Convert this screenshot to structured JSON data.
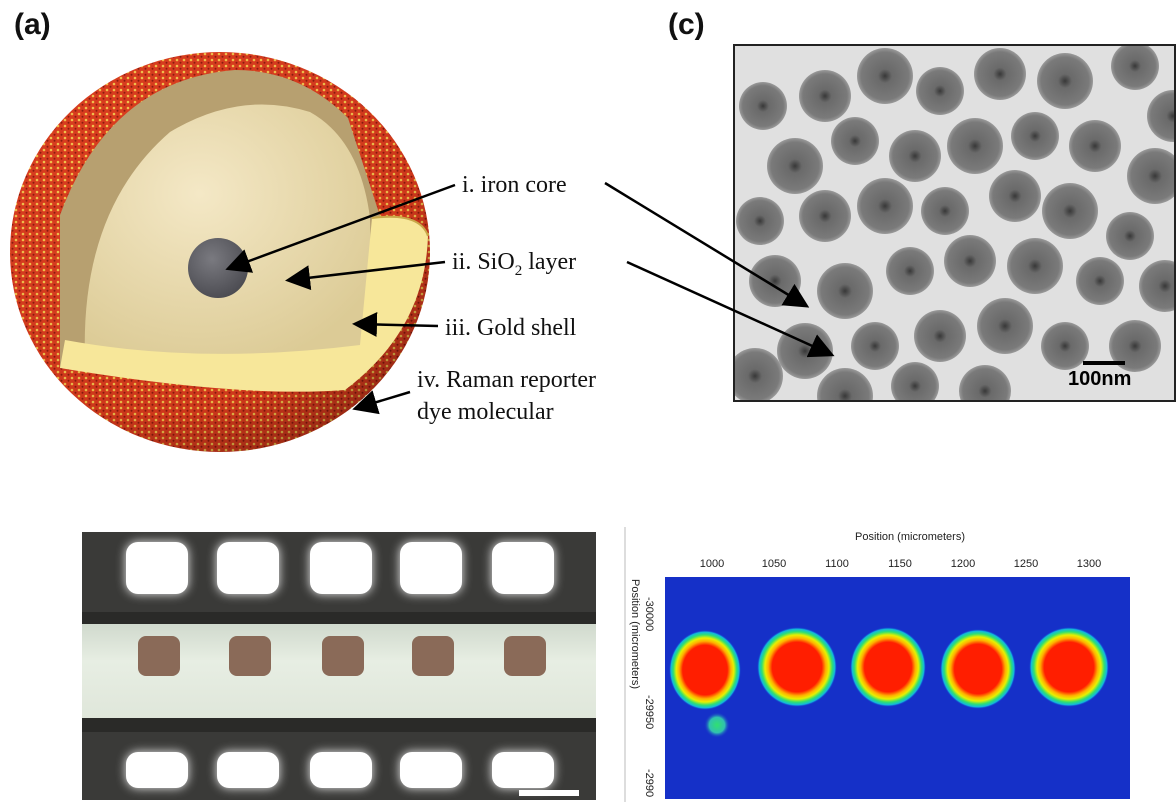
{
  "panel_a": {
    "letter": "(a)",
    "labels": {
      "core": "i. iron core",
      "silica_prefix": "ii. SiO",
      "silica_sub": "2",
      "silica_suffix": " layer",
      "gold": "iii. Gold shell",
      "raman_line1": "iv. Raman reporter",
      "raman_line2": "dye molecular"
    }
  },
  "panel_c": {
    "letter": "(c)",
    "scale_bar_label": "100nm"
  },
  "raman_map": {
    "top_axis_title": "Position (micrometers)",
    "top_ticks": [
      "1000",
      "1050",
      "1100",
      "1150",
      "1200",
      "1250",
      "1300"
    ],
    "left_axis_title": "Position (micrometers)",
    "left_ticks": [
      "-30000",
      "-29950",
      "-2990"
    ]
  },
  "colors": {
    "gold_shell": "#f7e79a",
    "raman_dye": "#d8301e",
    "iron_core": "#5e5e62",
    "tem_background": "#e2e2e2",
    "heatmap_background": "#1530c8",
    "heatmap_hot": "#ff1e00"
  }
}
